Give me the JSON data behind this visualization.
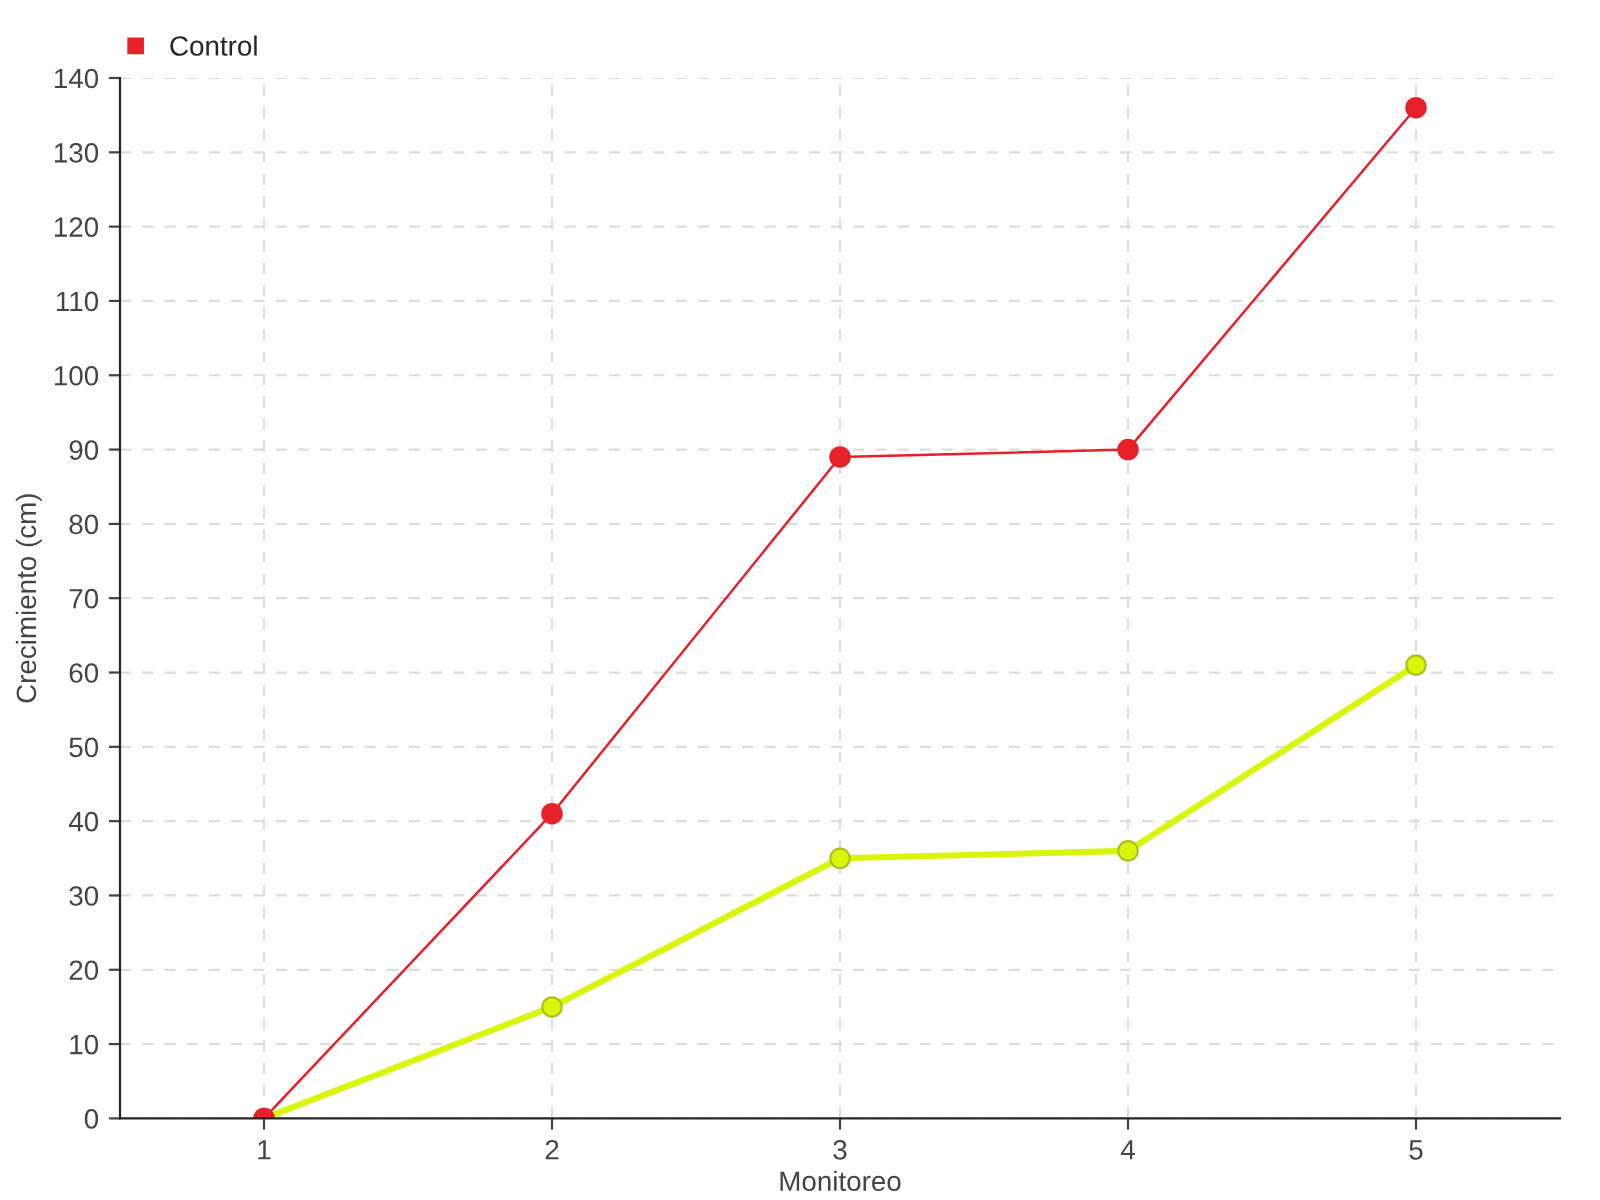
{
  "chart_data": {
    "type": "line",
    "xlabel": "Monitoreo",
    "ylabel": "Crecimiento (cm)",
    "categories": [
      "1",
      "2",
      "3",
      "4",
      "5"
    ],
    "series": [
      {
        "color": "#d8f50a",
        "values": [
          0,
          15,
          35,
          36,
          61
        ]
      },
      {
        "name": "Control",
        "color": "#e8202a",
        "values": [
          0,
          41,
          89,
          90,
          136
        ]
      }
    ],
    "ylim": [
      0,
      140
    ],
    "yticks": [
      0,
      10,
      20,
      30,
      40,
      50,
      60,
      70,
      80,
      90,
      100,
      110,
      120,
      130,
      140
    ],
    "grid": true,
    "legend": "top left",
    "marker": "circle",
    "line_style": "solid"
  }
}
